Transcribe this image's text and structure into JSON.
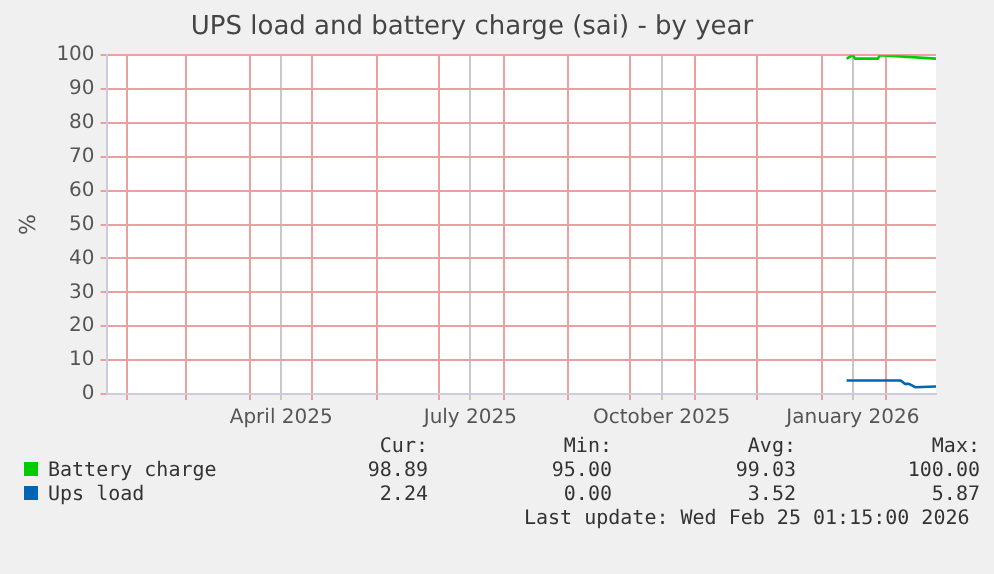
{
  "chart_data": {
    "type": "line",
    "title": "UPS load and battery charge (sai) - by year",
    "ylabel": "%",
    "series": [
      {
        "name": "Battery charge",
        "color": "#00cc00",
        "x": [
          "2026-01-13",
          "2026-01-16",
          "2026-01-17",
          "2026-01-28",
          "2026-01-29",
          "2026-02-25"
        ],
        "values": [
          99,
          100,
          99,
          99,
          100,
          99
        ]
      },
      {
        "name": "Ups load",
        "color": "#0066b3",
        "x": [
          "2026-01-13",
          "2026-02-08",
          "2026-02-10",
          "2026-02-12",
          "2026-02-15",
          "2026-02-25"
        ],
        "values": [
          4,
          4,
          3,
          3,
          2,
          2.2
        ]
      }
    ],
    "xlim": [
      "2025-01-22",
      "2026-02-25"
    ],
    "xticks": [
      {
        "value": "2025-02-01",
        "label": null
      },
      {
        "value": "2025-03-01",
        "label": null
      },
      {
        "value": "2025-04-01",
        "label": null
      },
      {
        "value": "2025-04-16",
        "label": "April 2025"
      },
      {
        "value": "2025-05-01",
        "label": null
      },
      {
        "value": "2025-06-01",
        "label": null
      },
      {
        "value": "2025-07-01",
        "label": null
      },
      {
        "value": "2025-07-16",
        "label": "July 2025"
      },
      {
        "value": "2025-08-01",
        "label": null
      },
      {
        "value": "2025-09-01",
        "label": null
      },
      {
        "value": "2025-10-01",
        "label": null
      },
      {
        "value": "2025-10-16",
        "label": "October 2025"
      },
      {
        "value": "2025-11-01",
        "label": null
      },
      {
        "value": "2025-12-01",
        "label": null
      },
      {
        "value": "2026-01-01",
        "label": null
      },
      {
        "value": "2026-01-16",
        "label": "January 2026"
      },
      {
        "value": "2026-02-01",
        "label": null
      }
    ],
    "ylim": [
      0,
      100
    ],
    "yticks": [
      0,
      10,
      20,
      30,
      40,
      50,
      60,
      70,
      80,
      90,
      100
    ],
    "grid": true,
    "legend": "bottom left",
    "annotations": [
      "Cur:",
      "Min:",
      "Avg:",
      "Max:",
      "98.89",
      "95.00",
      "99.03",
      "100.00",
      "2.24",
      "0.00",
      "3.52",
      "5.87",
      "Last update: Wed Feb 25 01:15:00 2026"
    ]
  }
}
